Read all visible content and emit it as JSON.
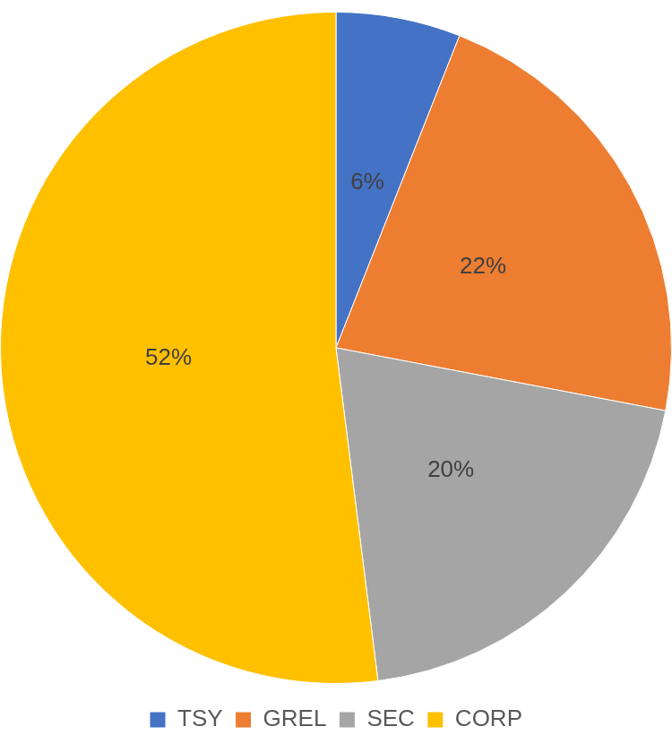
{
  "chart_data": {
    "type": "pie",
    "categories": [
      "TSY",
      "GREL",
      "SEC",
      "CORP"
    ],
    "values": [
      6,
      22,
      20,
      52
    ],
    "value_labels": [
      "6%",
      "22%",
      "20%",
      "52%"
    ],
    "colors": [
      "#4472c4",
      "#ed7d31",
      "#a5a5a5",
      "#ffc000"
    ],
    "legend": "bottom",
    "data_labels": true
  }
}
